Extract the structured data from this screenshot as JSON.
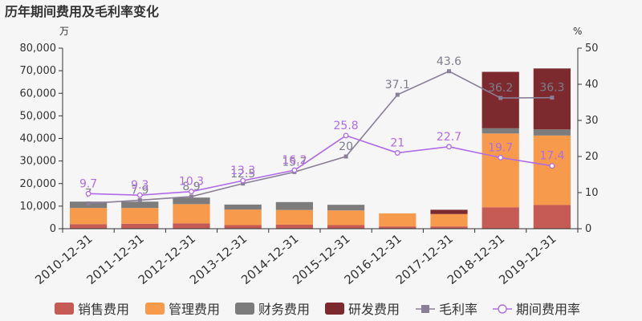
{
  "title": "历年期间费用及毛利率变化",
  "chart_data": {
    "type": "bar",
    "title": "历年期间费用及毛利率变化",
    "left_unit": "万",
    "right_unit": "%",
    "left_axis": {
      "min": 0,
      "max": 80000,
      "step": 10000,
      "tick_labels": [
        "0",
        "10,000",
        "20,000",
        "30,000",
        "40,000",
        "50,000",
        "60,000",
        "70,000",
        "80,000"
      ]
    },
    "right_axis": {
      "min": 0,
      "max": 50,
      "step": 10,
      "tick_labels": [
        "0",
        "10",
        "20",
        "30",
        "40",
        "50"
      ]
    },
    "categories": [
      "2010-12-31",
      "2011-12-31",
      "2012-12-31",
      "2013-12-31",
      "2014-12-31",
      "2015-12-31",
      "2016-12-31",
      "2017-12-31",
      "2018-12-31",
      "2019-12-31"
    ],
    "series": [
      {
        "name": "销售费用",
        "type": "bar",
        "stack": "cost",
        "color": "#c65a55",
        "values": [
          2000,
          2200,
          2400,
          1600,
          1800,
          1600,
          1000,
          1000,
          9500,
          10500
        ]
      },
      {
        "name": "管理费用",
        "type": "bar",
        "stack": "cost",
        "color": "#f79a4c",
        "values": [
          7200,
          7000,
          8500,
          6900,
          6500,
          6500,
          5800,
          5500,
          32700,
          30800
        ]
      },
      {
        "name": "财务费用",
        "type": "bar",
        "stack": "cost",
        "color": "#7c7c7c",
        "values": [
          2800,
          2800,
          2900,
          2200,
          3500,
          2500,
          0,
          0,
          2300,
          2700
        ]
      },
      {
        "name": "研发费用",
        "type": "bar",
        "stack": "cost",
        "color": "#7c2a2e",
        "values": [
          0,
          0,
          0,
          0,
          0,
          0,
          0,
          1900,
          25000,
          27000
        ]
      },
      {
        "name": "毛利率",
        "type": "line",
        "axis": "right",
        "color": "#8a7f96",
        "values": [
          7,
          7.9,
          8.9,
          12.5,
          15.7,
          20,
          37.1,
          43.6,
          36.2,
          36.3
        ],
        "labels": [
          "7",
          "7.9",
          "8.9",
          "12.5",
          "15.7",
          "20",
          "37.1",
          "43.6",
          "36.2",
          "36.3"
        ]
      },
      {
        "name": "期间费用率",
        "type": "line",
        "axis": "right",
        "color": "#b06be6",
        "values": [
          9.7,
          9.3,
          10.3,
          13.3,
          16.2,
          25.8,
          21,
          22.7,
          19.7,
          17.4
        ],
        "labels": [
          "9.7",
          "9.3",
          "10.3",
          "13.3",
          "16.2",
          "25.8",
          "21",
          "22.7",
          "19.7",
          "17.4"
        ]
      }
    ],
    "legend": [
      "销售费用",
      "管理费用",
      "财务费用",
      "研发费用",
      "毛利率",
      "期间费用率"
    ],
    "legend_position": "bottom"
  }
}
